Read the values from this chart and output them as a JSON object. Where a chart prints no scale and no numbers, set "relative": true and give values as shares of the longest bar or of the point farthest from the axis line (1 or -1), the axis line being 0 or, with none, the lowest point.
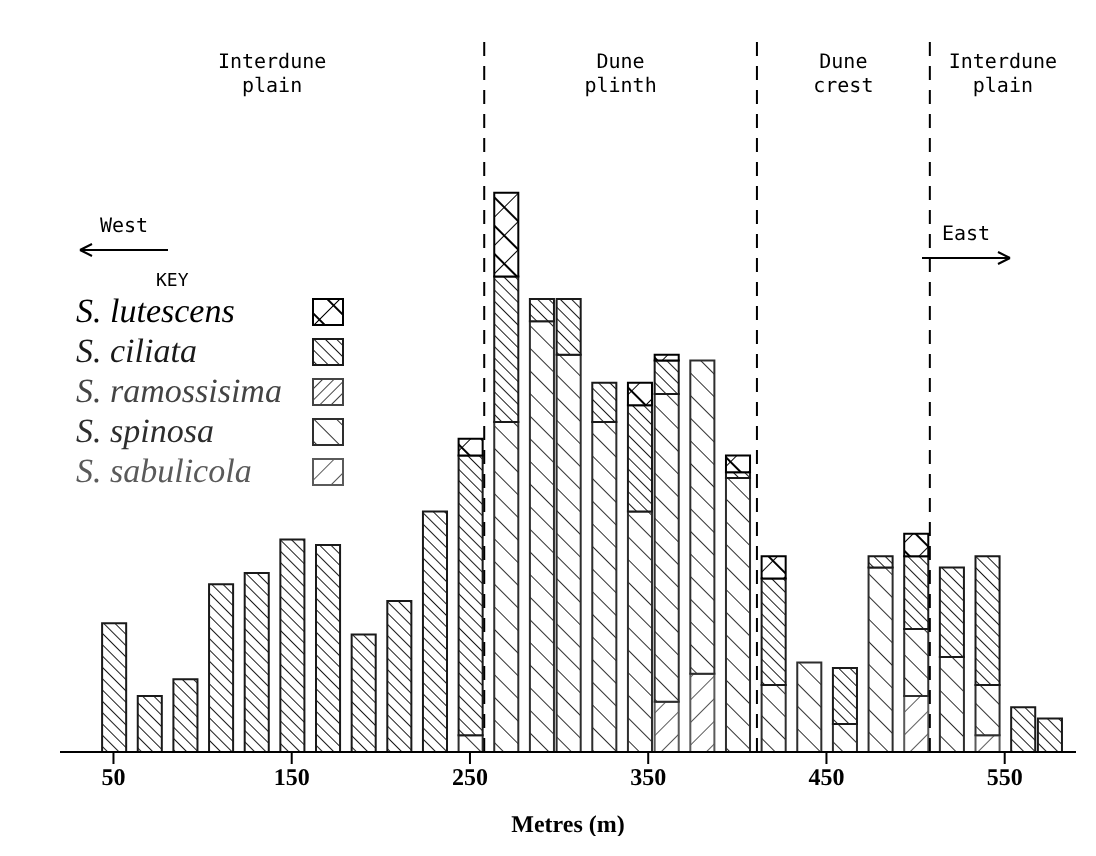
{
  "chart_data": {
    "type": "bar",
    "stacked": true,
    "relative": true,
    "xlabel": "Metres (m)",
    "legend_title": "KEY",
    "legend": "left",
    "line_style": "dashed",
    "x": [
      50,
      70,
      90,
      110,
      130,
      150,
      170,
      190,
      210,
      230,
      250,
      270,
      290,
      305,
      325,
      345,
      360,
      380,
      400,
      420,
      440,
      460,
      480,
      500,
      520,
      540,
      560,
      575
    ],
    "xlim": [
      20,
      590
    ],
    "xticks": [
      50,
      150,
      250,
      350,
      450,
      550
    ],
    "series": [
      {
        "name": "S. sabulicola",
        "color": "#5a5a5a",
        "values": [
          null,
          null,
          null,
          null,
          null,
          null,
          null,
          null,
          null,
          null,
          null,
          null,
          null,
          null,
          null,
          null,
          0.09,
          0.14,
          null,
          null,
          null,
          null,
          null,
          0.1,
          null,
          0.03,
          null,
          null
        ]
      },
      {
        "name": "S. spinosa",
        "color": "#2e2e2e",
        "values": [
          null,
          null,
          null,
          null,
          null,
          null,
          null,
          null,
          null,
          null,
          0.03,
          0.59,
          0.77,
          0.71,
          0.59,
          0.43,
          0.55,
          0.56,
          0.49,
          0.12,
          0.16,
          0.05,
          0.33,
          0.12,
          0.17,
          0.09,
          null,
          null
        ]
      },
      {
        "name": "S. ramossisima",
        "color": "#444444",
        "values": [
          null,
          null,
          null,
          null,
          null,
          null,
          null,
          null,
          null,
          null,
          null,
          null,
          null,
          null,
          null,
          null,
          null,
          null,
          null,
          null,
          null,
          null,
          null,
          null,
          null,
          null,
          null,
          null
        ]
      },
      {
        "name": "S. ciliata",
        "color": "#1a1a1a",
        "values": [
          0.23,
          0.1,
          0.13,
          0.3,
          0.32,
          0.38,
          0.37,
          0.21,
          0.27,
          0.43,
          0.5,
          0.26,
          0.04,
          0.1,
          0.07,
          0.19,
          0.06,
          null,
          0.01,
          0.19,
          null,
          0.1,
          0.02,
          0.13,
          0.16,
          0.23,
          0.08,
          0.06
        ]
      },
      {
        "name": "S. lutescens",
        "color": "#000000",
        "values": [
          null,
          null,
          null,
          null,
          null,
          null,
          null,
          null,
          null,
          null,
          0.03,
          0.15,
          null,
          null,
          null,
          0.04,
          0.01,
          null,
          0.03,
          0.04,
          null,
          null,
          null,
          0.04,
          null,
          null,
          null,
          null
        ]
      }
    ],
    "ref_lines": [
      {
        "axis": "x",
        "value": 258
      },
      {
        "axis": "x",
        "value": 411
      },
      {
        "axis": "x",
        "value": 508
      }
    ],
    "annotations": [
      "Interdune plain",
      "Dune plinth",
      "Dune crest",
      "Interdune plain",
      "West",
      "East"
    ]
  }
}
